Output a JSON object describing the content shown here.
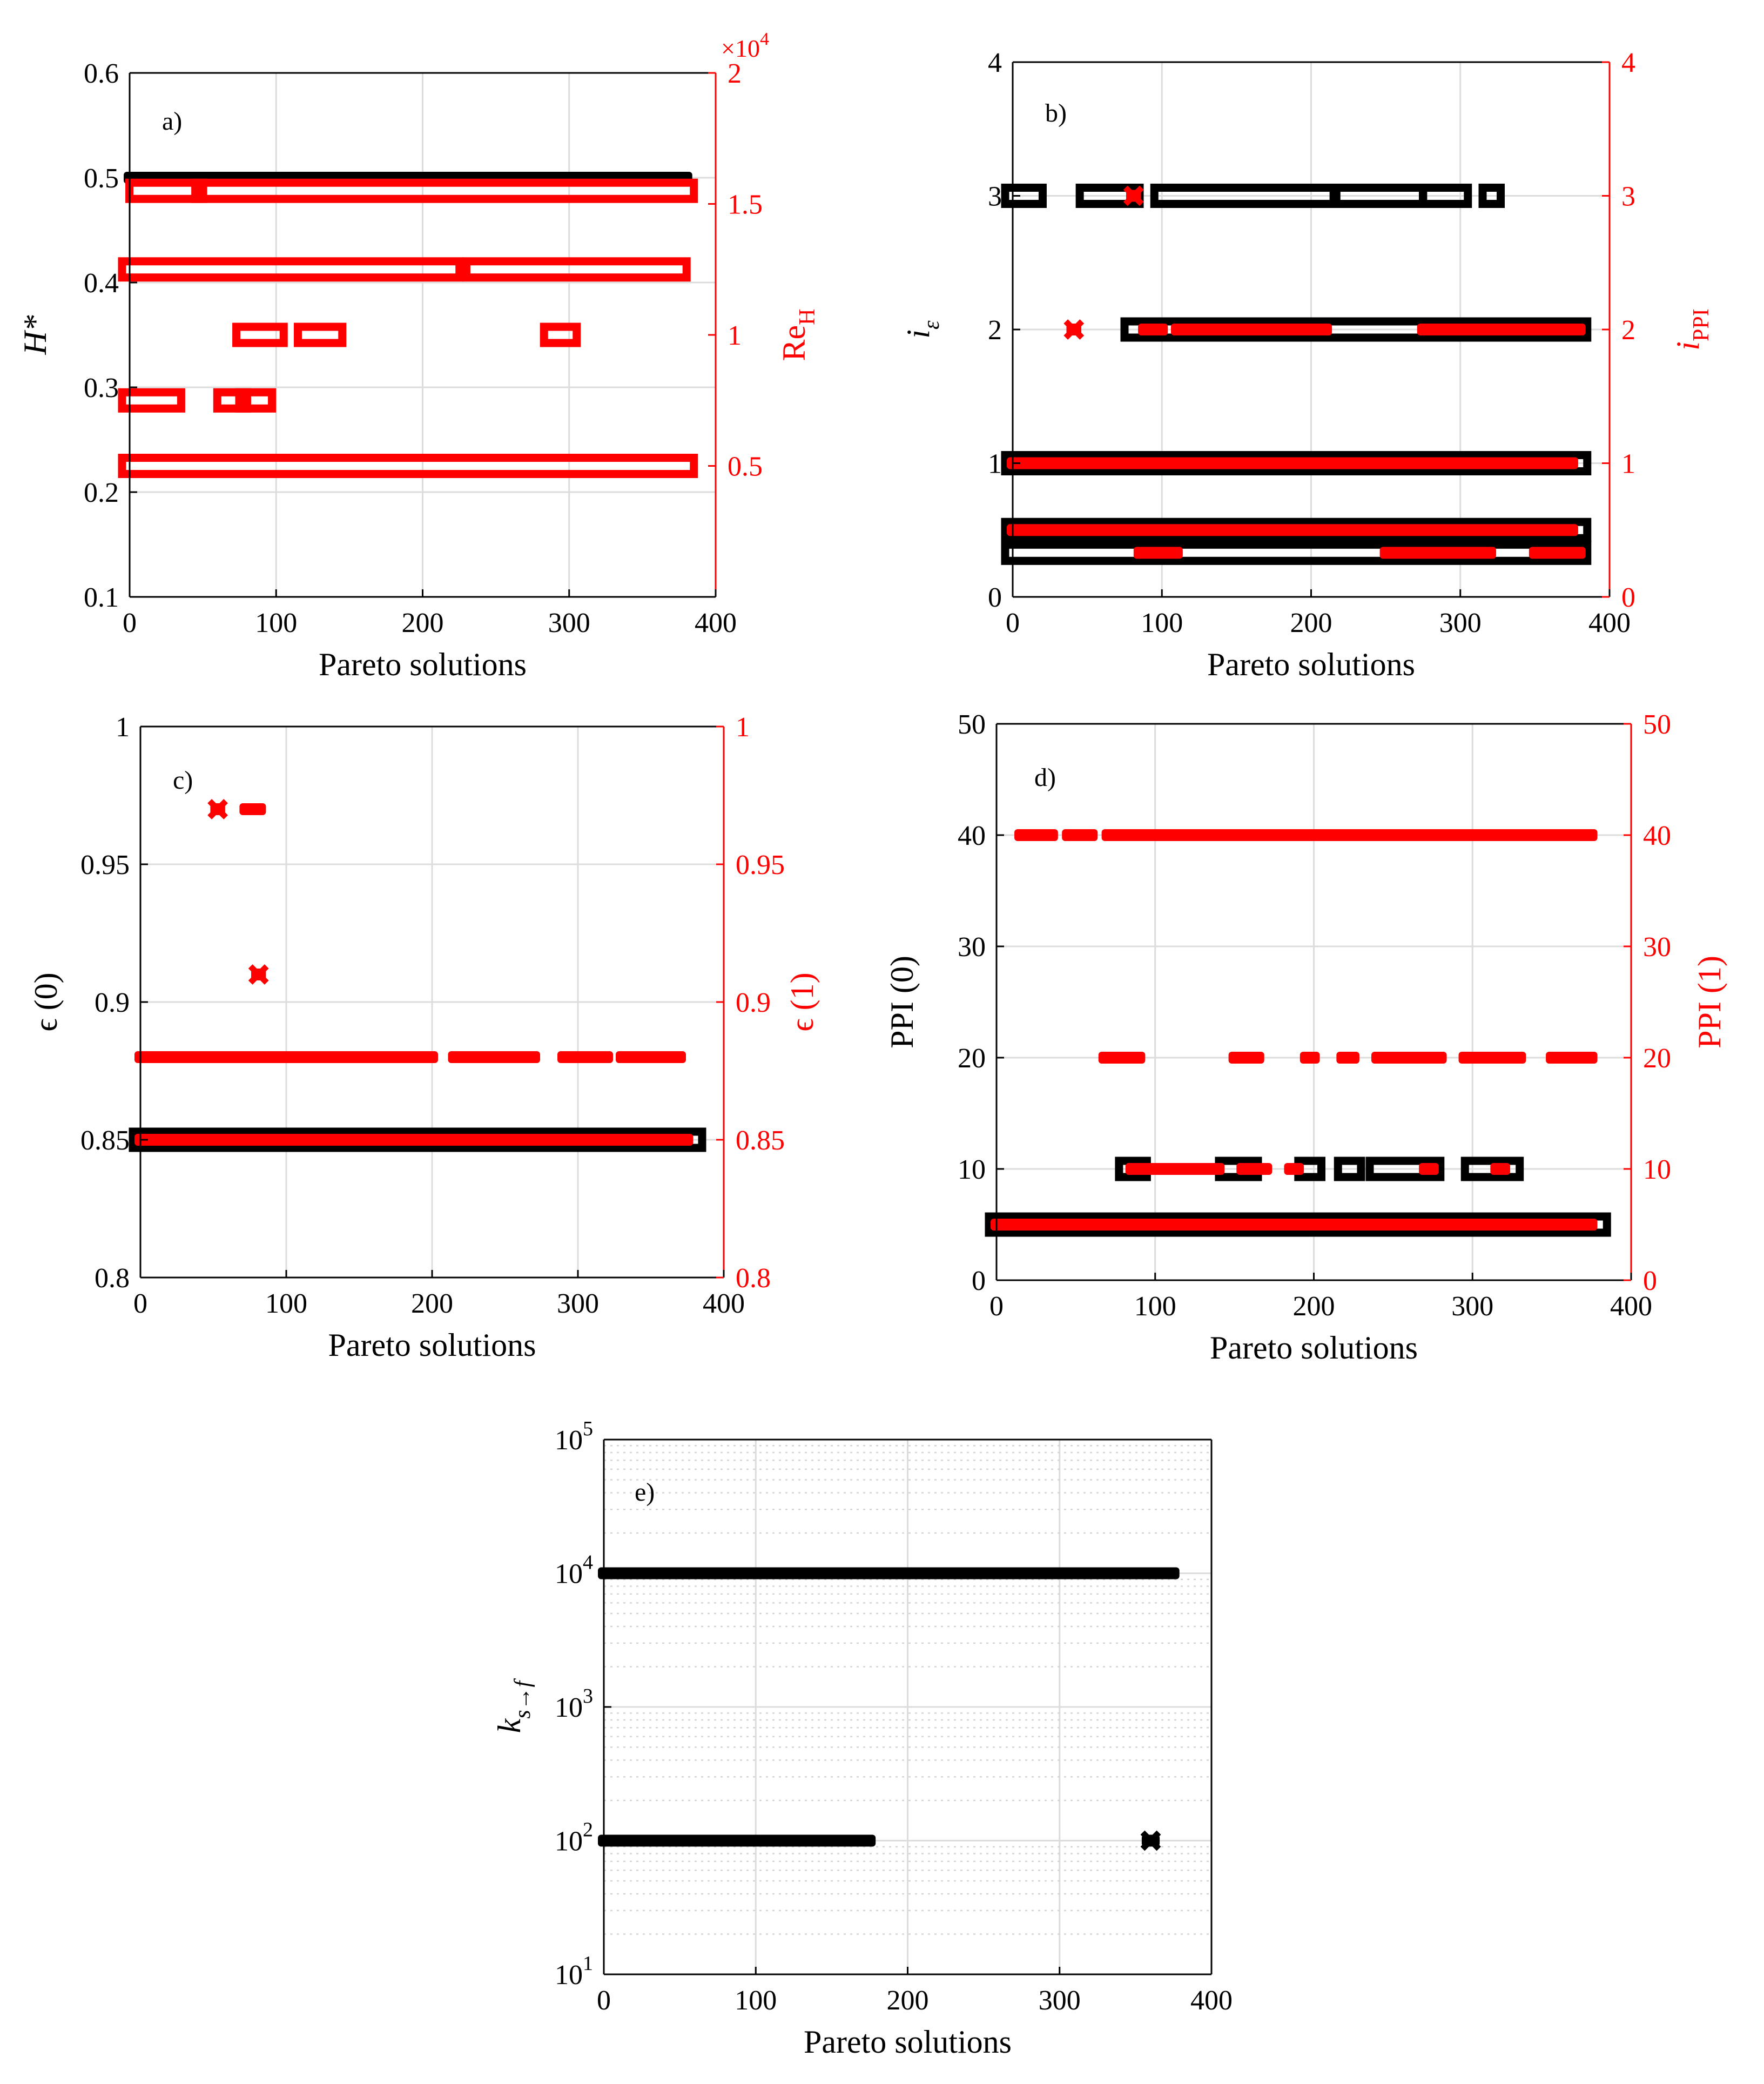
{
  "figure": {
    "title": ""
  },
  "chart_data": [
    {
      "id": "a",
      "type": "scatter",
      "panel_label": "a)",
      "title": "",
      "xlabel": "Pareto solutions",
      "ylabel_left": "H*",
      "ylabel_right": "Re_H",
      "right_multiplier": "×10^4",
      "xlim": [
        0,
        400
      ],
      "ylim_left": [
        0.1,
        0.6
      ],
      "ylim_right": [
        0.0,
        2.0
      ],
      "xticks": [
        0,
        100,
        200,
        300,
        400
      ],
      "yticks_left": [
        0.1,
        0.2,
        0.3,
        0.4,
        0.5,
        0.6
      ],
      "yticks_right": [
        0.5,
        1,
        1.5,
        2
      ],
      "series": [
        {
          "name": "H*",
          "axis": "left",
          "marker": "x",
          "color": "#000000",
          "segments": [
            {
              "y": 0.5,
              "x": [
                0,
                380
              ]
            }
          ]
        },
        {
          "name": "Re_H",
          "axis": "right",
          "marker": "s",
          "color": "#ff0000",
          "segments": [
            {
              "y": 1.55,
              "x": [
                5,
                45
              ]
            },
            {
              "y": 1.55,
              "x": [
                50,
                380
              ]
            },
            {
              "y": 1.25,
              "x": [
                0,
                220
              ]
            },
            {
              "y": 1.25,
              "x": [
                235,
                375
              ]
            },
            {
              "y": 1.0,
              "x": [
                78,
                100
              ]
            },
            {
              "y": 1.0,
              "x": [
                120,
                140
              ]
            },
            {
              "y": 1.0,
              "x": [
                288,
                300
              ]
            },
            {
              "y": 0.75,
              "x": [
                0,
                30
              ]
            },
            {
              "y": 0.75,
              "x": [
                65,
                75
              ]
            },
            {
              "y": 0.75,
              "x": [
                80,
                92
              ]
            },
            {
              "y": 0.5,
              "x": [
                0,
                380
              ]
            }
          ]
        }
      ]
    },
    {
      "id": "b",
      "type": "scatter",
      "panel_label": "b)",
      "title": "",
      "xlabel": "Pareto solutions",
      "ylabel_left": "i_ε",
      "ylabel_right": "i_PPI",
      "xlim": [
        0,
        400
      ],
      "ylim_left": [
        0,
        4
      ],
      "ylim_right": [
        0,
        4
      ],
      "xticks": [
        0,
        100,
        200,
        300,
        400
      ],
      "yticks_left": [
        0,
        1,
        2,
        3,
        4
      ],
      "yticks_right": [
        0,
        1,
        2,
        3,
        4
      ],
      "series": [
        {
          "name": "i_ε",
          "axis": "left",
          "marker": "s",
          "color": "#000000",
          "segments": [
            {
              "y": 3,
              "x": [
                0,
                15
              ]
            },
            {
              "y": 3,
              "x": [
                50,
                80
              ]
            },
            {
              "y": 3,
              "x": [
                100,
                210
              ]
            },
            {
              "y": 3,
              "x": [
                222,
                270
              ]
            },
            {
              "y": 3,
              "x": [
                280,
                300
              ]
            },
            {
              "y": 3,
              "x": [
                320,
                322
              ]
            },
            {
              "y": 2,
              "x": [
                80,
                380
              ]
            },
            {
              "y": 1,
              "x": [
                0,
                380
              ]
            },
            {
              "y": 0.5,
              "x": [
                0,
                380
              ]
            },
            {
              "y": 0.33,
              "x": [
                0,
                380
              ]
            }
          ]
        },
        {
          "name": "i_PPI",
          "axis": "right",
          "marker": "x",
          "color": "#ff0000",
          "segments": [
            {
              "y": 3,
              "x": [
                80,
                82
              ]
            },
            {
              "y": 2,
              "x": [
                40,
                42
              ]
            },
            {
              "y": 2,
              "x": [
                88,
                100
              ]
            },
            {
              "y": 2,
              "x": [
                110,
                210
              ]
            },
            {
              "y": 2,
              "x": [
                275,
                380
              ]
            },
            {
              "y": 1,
              "x": [
                0,
                375
              ]
            },
            {
              "y": 0.5,
              "x": [
                0,
                375
              ]
            },
            {
              "y": 0.33,
              "x": [
                85,
                110
              ]
            },
            {
              "y": 0.33,
              "x": [
                250,
                320
              ]
            },
            {
              "y": 0.33,
              "x": [
                350,
                380
              ]
            }
          ]
        }
      ]
    },
    {
      "id": "c",
      "type": "scatter",
      "panel_label": "c)",
      "title": "",
      "xlabel": "Pareto solutions",
      "ylabel_left": "ϵ (0)",
      "ylabel_right": "ϵ (1)",
      "xlim": [
        0,
        400
      ],
      "ylim_left": [
        0.8,
        1.0
      ],
      "ylim_right": [
        0.8,
        1.0
      ],
      "xticks": [
        0,
        100,
        200,
        300,
        400
      ],
      "yticks_left": [
        0.8,
        0.85,
        0.9,
        0.95,
        1
      ],
      "yticks_right": [
        0.8,
        0.85,
        0.9,
        0.95,
        1
      ],
      "series": [
        {
          "name": "ϵ (0)",
          "axis": "left",
          "marker": "s",
          "color": "#000000",
          "segments": [
            {
              "y": 0.85,
              "x": [
                0,
                380
              ]
            }
          ]
        },
        {
          "name": "ϵ (1)",
          "axis": "right",
          "marker": "x",
          "color": "#ff0000",
          "segments": [
            {
              "y": 0.97,
              "x": [
                52,
                54
              ]
            },
            {
              "y": 0.97,
              "x": [
                72,
                82
              ]
            },
            {
              "y": 0.91,
              "x": [
                80,
                82
              ]
            },
            {
              "y": 0.88,
              "x": [
                0,
                200
              ]
            },
            {
              "y": 0.88,
              "x": [
                215,
                270
              ]
            },
            {
              "y": 0.88,
              "x": [
                290,
                320
              ]
            },
            {
              "y": 0.88,
              "x": [
                330,
                370
              ]
            },
            {
              "y": 0.85,
              "x": [
                0,
                375
              ]
            }
          ]
        }
      ]
    },
    {
      "id": "d",
      "type": "scatter",
      "panel_label": "d)",
      "title": "",
      "xlabel": "Pareto solutions",
      "ylabel_left": "PPI (0)",
      "ylabel_right": "PPI (1)",
      "xlim": [
        0,
        400
      ],
      "ylim_left": [
        0,
        50
      ],
      "ylim_right": [
        0,
        50
      ],
      "xticks": [
        0,
        100,
        200,
        300,
        400
      ],
      "yticks_left": [
        0,
        10,
        20,
        30,
        40,
        50
      ],
      "yticks_right": [
        0,
        10,
        20,
        30,
        40,
        50
      ],
      "series": [
        {
          "name": "PPI (0)",
          "axis": "left",
          "marker": "s",
          "color": "#000000",
          "segments": [
            {
              "y": 10,
              "x": [
                82,
                90
              ]
            },
            {
              "y": 10,
              "x": [
                145,
                160
              ]
            },
            {
              "y": 10,
              "x": [
                195,
                200
              ]
            },
            {
              "y": 10,
              "x": [
                220,
                225
              ]
            },
            {
              "y": 10,
              "x": [
                240,
                275
              ]
            },
            {
              "y": 10,
              "x": [
                300,
                325
              ]
            },
            {
              "y": 5,
              "x": [
                0,
                380
              ]
            }
          ]
        },
        {
          "name": "PPI (1)",
          "axis": "right",
          "marker": "x",
          "color": "#ff0000",
          "segments": [
            {
              "y": 40,
              "x": [
                15,
                35
              ]
            },
            {
              "y": 40,
              "x": [
                45,
                60
              ]
            },
            {
              "y": 40,
              "x": [
                70,
                375
              ]
            },
            {
              "y": 20,
              "x": [
                68,
                90
              ]
            },
            {
              "y": 20,
              "x": [
                150,
                165
              ]
            },
            {
              "y": 20,
              "x": [
                195,
                200
              ]
            },
            {
              "y": 20,
              "x": [
                218,
                225
              ]
            },
            {
              "y": 20,
              "x": [
                240,
                280
              ]
            },
            {
              "y": 20,
              "x": [
                295,
                330
              ]
            },
            {
              "y": 20,
              "x": [
                350,
                375
              ]
            },
            {
              "y": 10,
              "x": [
                85,
                140
              ]
            },
            {
              "y": 10,
              "x": [
                155,
                170
              ]
            },
            {
              "y": 10,
              "x": [
                185,
                190
              ]
            },
            {
              "y": 10,
              "x": [
                270,
                275
              ]
            },
            {
              "y": 10,
              "x": [
                315,
                320
              ]
            },
            {
              "y": 5,
              "x": [
                0,
                375
              ]
            }
          ]
        }
      ]
    },
    {
      "id": "e",
      "type": "scatter",
      "panel_label": "e)",
      "title": "",
      "xlabel": "Pareto solutions",
      "ylabel_left": "k_{s→f}",
      "yscale": "log",
      "xlim": [
        0,
        400
      ],
      "ylim_left": [
        10,
        100000
      ],
      "xticks": [
        0,
        100,
        200,
        300,
        400
      ],
      "yticks_left": [
        10,
        100,
        1000,
        10000,
        100000
      ],
      "ytick_labels": [
        {
          "base": "10",
          "exp": "1"
        },
        {
          "base": "10",
          "exp": "2"
        },
        {
          "base": "10",
          "exp": "3"
        },
        {
          "base": "10",
          "exp": "4"
        },
        {
          "base": "10",
          "exp": "5"
        }
      ],
      "series": [
        {
          "name": "k_s→f",
          "axis": "left",
          "marker": "x",
          "color": "#000000",
          "segments": [
            {
              "y": 10000,
              "x": [
                0,
                375
              ]
            },
            {
              "y": 100,
              "x": [
                0,
                175
              ]
            },
            {
              "y": 100,
              "x": [
                358,
                362
              ]
            }
          ]
        }
      ]
    }
  ]
}
